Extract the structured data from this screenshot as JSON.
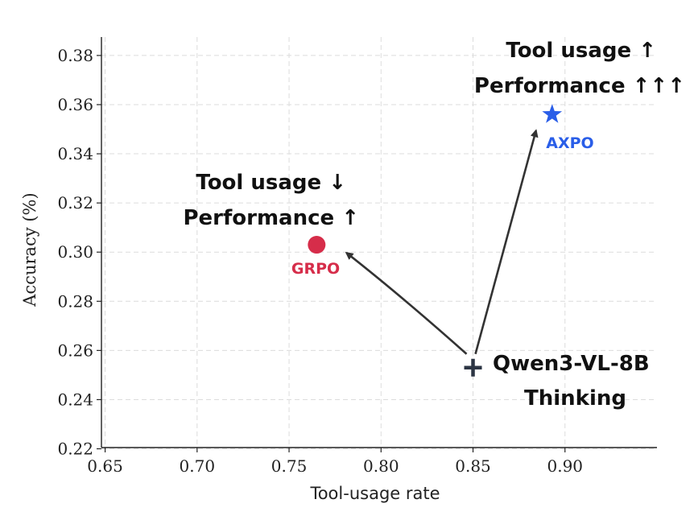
{
  "chart_data": {
    "type": "scatter",
    "xlabel": "Tool-usage rate",
    "ylabel": "Accuracy (%)",
    "xlim": [
      0.648,
      0.95
    ],
    "ylim": [
      0.2205,
      0.3875
    ],
    "xticks": [
      "0.65",
      "0.70",
      "0.75",
      "0.80",
      "0.85",
      "0.90"
    ],
    "yticks": [
      "0.22",
      "0.24",
      "0.26",
      "0.28",
      "0.30",
      "0.32",
      "0.34",
      "0.36",
      "0.38"
    ],
    "grid": true,
    "points": [
      {
        "name": "GRPO",
        "x": 0.765,
        "y": 0.303,
        "marker": "circle",
        "color": "#d62d4a"
      },
      {
        "name": "AXPO",
        "x": 0.893,
        "y": 0.356,
        "marker": "star",
        "color": "#2a5ee8"
      },
      {
        "name": "Qwen3-VL-8B Thinking",
        "x": 0.85,
        "y": 0.253,
        "marker": "plus",
        "color": "#2c3544"
      }
    ],
    "labels": {
      "grpo": "GRPO",
      "axpo": "AXPO",
      "base_line1": "Qwen3-VL-8B",
      "base_line2": "Thinking"
    },
    "annotations": {
      "grpo_line1": "Tool usage ↓",
      "grpo_line2": "Performance ↑",
      "axpo_line1": "Tool usage ↑",
      "axpo_line2": "Performance ↑↑↑"
    },
    "arrows": [
      {
        "from": "Qwen3-VL-8B Thinking",
        "to": "GRPO"
      },
      {
        "from": "Qwen3-VL-8B Thinking",
        "to": "AXPO"
      }
    ]
  }
}
